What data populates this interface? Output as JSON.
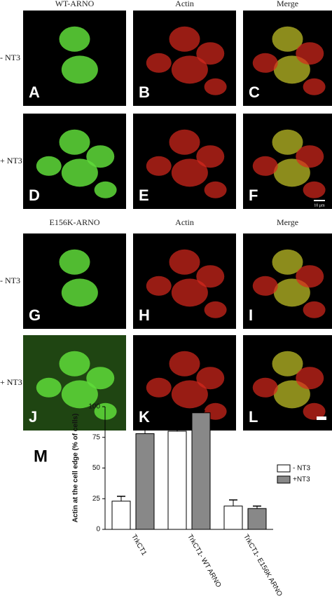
{
  "panels_top": {
    "columns": [
      "WT-ARNO",
      "Actin",
      "Merge"
    ],
    "rows": [
      {
        "label": "- NT3",
        "panels": [
          "A",
          "B",
          "C"
        ]
      },
      {
        "label": "+ NT3",
        "panels": [
          "D",
          "E",
          "F"
        ]
      }
    ],
    "scale_bar": "10 μm"
  },
  "panels_bottom": {
    "columns": [
      "E156K-ARNO",
      "Actin",
      "Merge"
    ],
    "rows": [
      {
        "label": "- NT3",
        "panels": [
          "G",
          "H",
          "I"
        ]
      },
      {
        "label": "+ NT3",
        "panels": [
          "J",
          "K",
          "L"
        ]
      }
    ]
  },
  "chart_data": {
    "type": "bar",
    "panel_label": "M",
    "y_label": "Actin at the cell edge (% of cells)",
    "categories": [
      "TrkCT1",
      "TrkCT1- WT ARNO",
      "TrkCT1- E156K ARNO"
    ],
    "series": [
      {
        "name": "- NT3",
        "color": "#ffffff",
        "values": [
          23,
          80,
          19
        ],
        "errors": [
          4,
          4,
          5
        ]
      },
      {
        "name": "+NT3",
        "color": "#888888",
        "values": [
          78,
          95,
          17
        ],
        "errors": [
          3,
          1.5,
          2
        ]
      }
    ],
    "ylim": [
      0,
      100
    ],
    "yticks": [
      0,
      25,
      50,
      75,
      100
    ],
    "legend": "upper-right"
  }
}
